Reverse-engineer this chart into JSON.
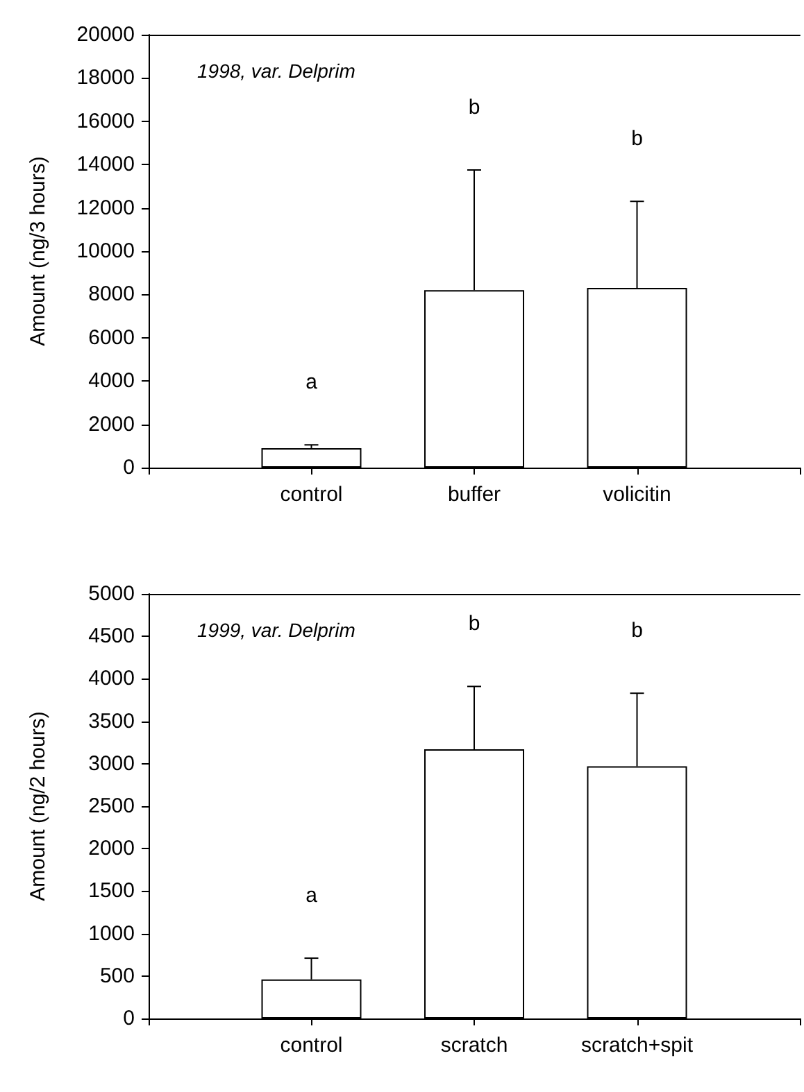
{
  "chart_data": [
    {
      "type": "bar",
      "title": "1998, var. Delprim",
      "ylabel": "Amount (ng/3 hours)",
      "categories": [
        null,
        "control",
        "buffer",
        "volicitin",
        null
      ],
      "series": [
        {
          "color": "#ffffff",
          "values": [
            null,
            900,
            8200,
            8300,
            null
          ],
          "errors": [
            null,
            [
              900,
              1050
            ],
            [
              8200,
              13750
            ],
            [
              8300,
              12300
            ],
            null
          ]
        }
      ],
      "ylim": [
        0,
        20000
      ],
      "yticks": [
        0,
        2000,
        4000,
        6000,
        8000,
        10000,
        12000,
        14000,
        16000,
        18000,
        20000
      ],
      "grid": false,
      "annotations": [
        "a",
        "b",
        "b"
      ]
    },
    {
      "type": "bar",
      "title": "1999, var. Delprim",
      "ylabel": "Amount (ng/2 hours)",
      "categories": [
        null,
        "control",
        "scratch",
        "scratch+spit",
        null
      ],
      "series": [
        {
          "color": "#ffffff",
          "values": [
            null,
            460,
            3170,
            2970,
            null
          ],
          "errors": [
            null,
            [
              460,
              710
            ],
            [
              3170,
              3910
            ],
            [
              2970,
              3830
            ],
            null
          ]
        }
      ],
      "ylim": [
        0,
        5000
      ],
      "yticks": [
        0,
        500,
        1000,
        1500,
        2000,
        2500,
        3000,
        3500,
        4000,
        4500,
        5000
      ],
      "grid": false,
      "annotations": [
        "a",
        "b",
        "b"
      ]
    }
  ]
}
